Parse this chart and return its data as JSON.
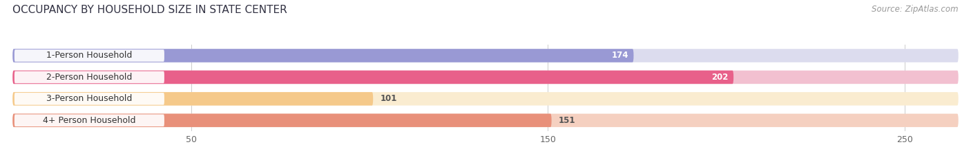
{
  "title": "OCCUPANCY BY HOUSEHOLD SIZE IN STATE CENTER",
  "source": "Source: ZipAtlas.com",
  "categories": [
    "1-Person Household",
    "2-Person Household",
    "3-Person Household",
    "4+ Person Household"
  ],
  "values": [
    174,
    202,
    101,
    151
  ],
  "bar_colors": [
    "#9999d4",
    "#e8608a",
    "#f5c98a",
    "#e8907a"
  ],
  "bar_bg_colors": [
    "#dcdcee",
    "#f2c0d0",
    "#faecd0",
    "#f5d0c0"
  ],
  "xlim": [
    0,
    265
  ],
  "xticks": [
    50,
    150,
    250
  ],
  "title_fontsize": 11,
  "label_fontsize": 9,
  "value_fontsize": 8.5,
  "source_fontsize": 8.5,
  "background_color": "#ffffff",
  "chart_bg_color": "#f5f5f8"
}
